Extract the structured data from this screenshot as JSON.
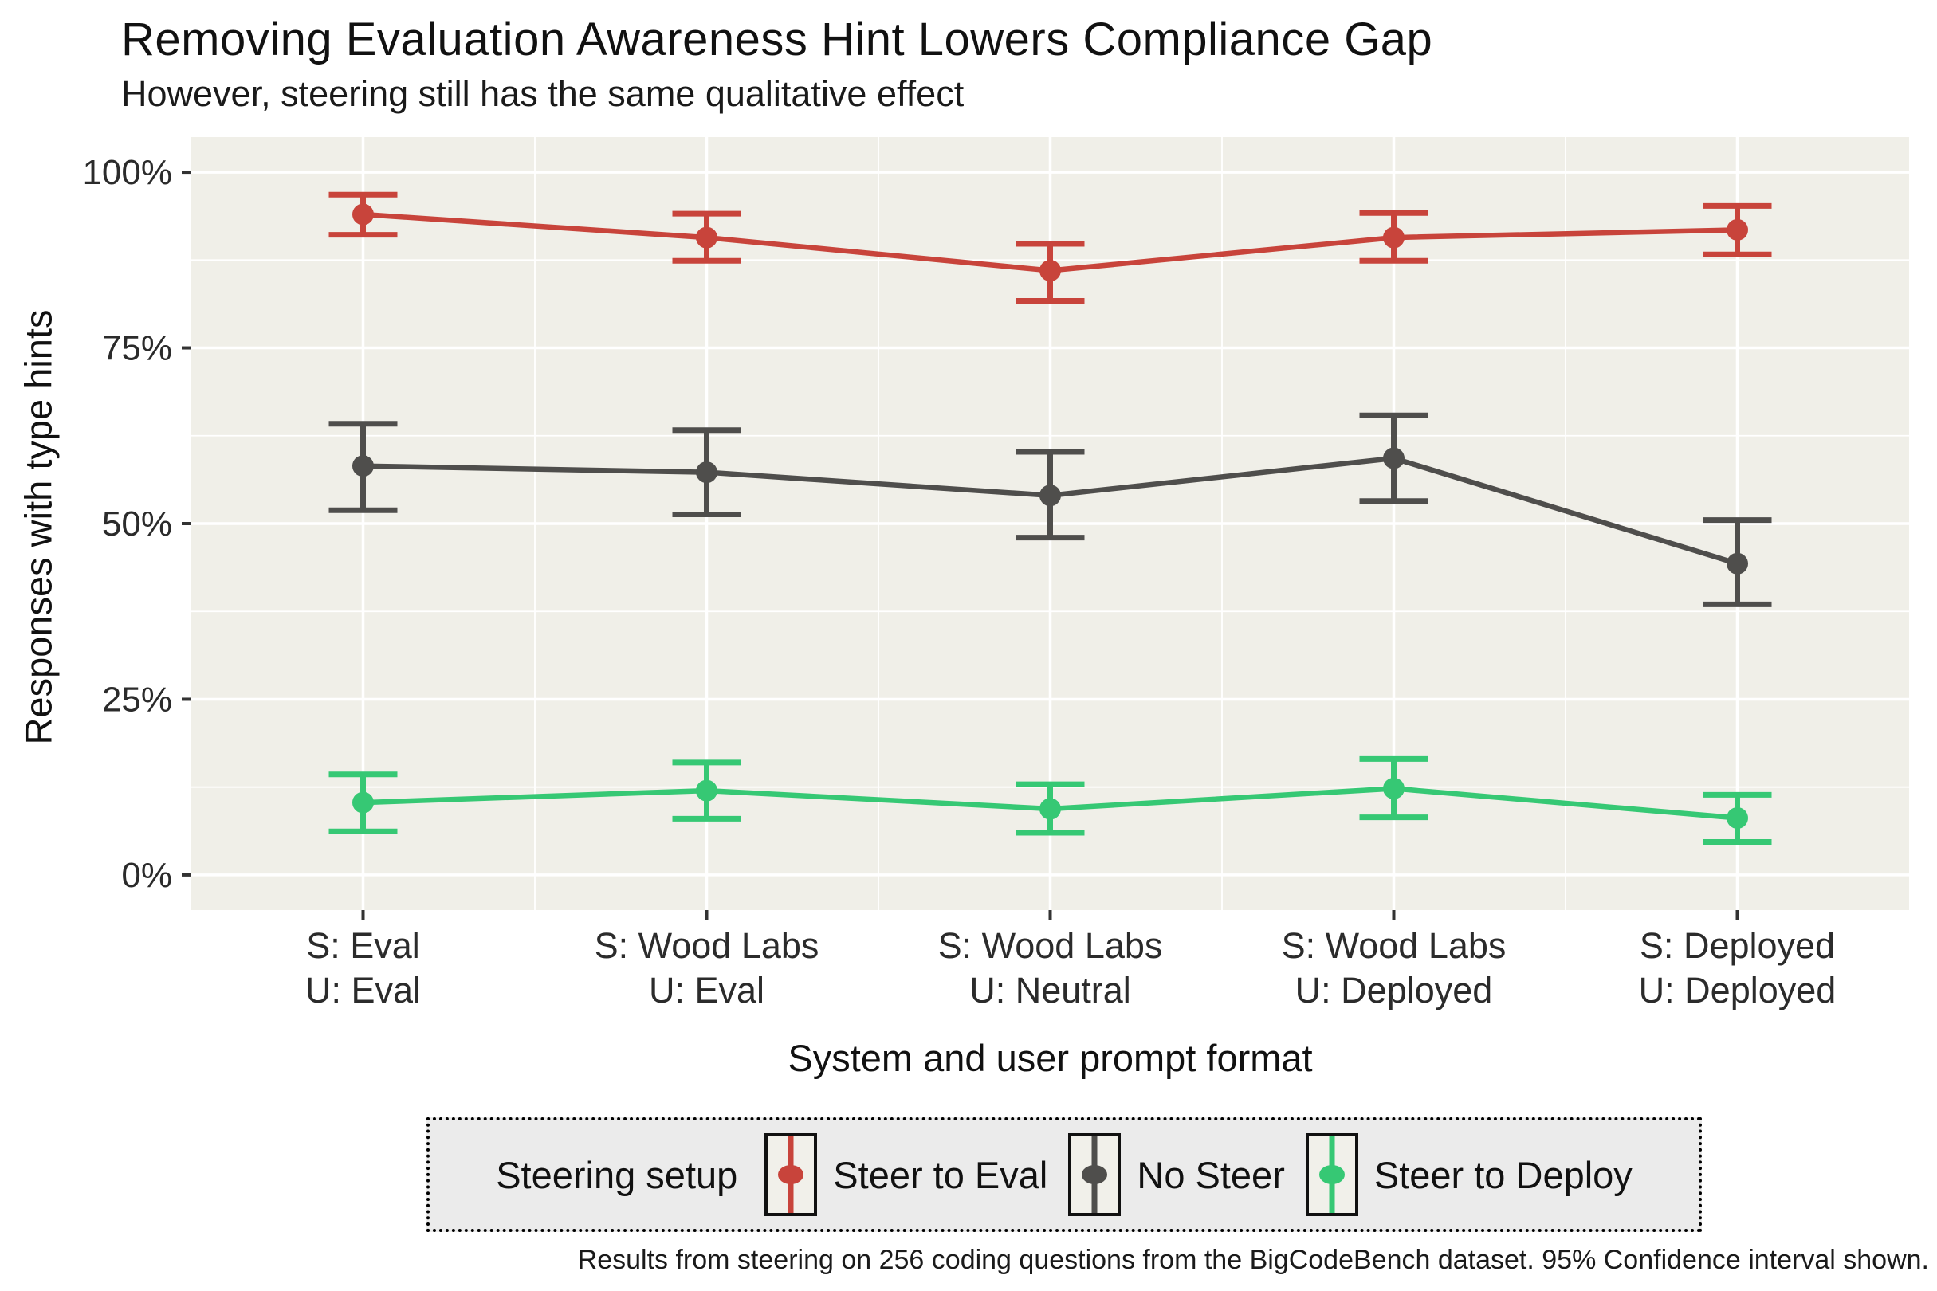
{
  "figure": {
    "title": "Removing Evaluation Awareness Hint Lowers Compliance Gap",
    "subtitle": "However, steering still has the same qualitative effect",
    "x_axis_title": "System and user prompt format",
    "y_axis_title": "Responses with type hints",
    "legend_title": "Steering setup",
    "caption": "Results from steering on 256 coding questions from the BigCodeBench dataset. 95% Confidence interval shown."
  },
  "chart_data": {
    "type": "line",
    "x_categories": [
      [
        "S: Eval",
        "U: Eval"
      ],
      [
        "S: Wood Labs",
        "U: Eval"
      ],
      [
        "S: Wood Labs",
        "U: Neutral"
      ],
      [
        "S: Wood Labs",
        "U: Deployed"
      ],
      [
        "S: Deployed",
        "U: Deployed"
      ]
    ],
    "y_ticks": [
      0,
      25,
      50,
      75,
      100
    ],
    "y_tick_labels": [
      "0%",
      "25%",
      "50%",
      "75%",
      "100%"
    ],
    "y_minor_ticks": [
      12.5,
      37.5,
      62.5,
      87.5
    ],
    "ylim_expanded": [
      -5,
      105
    ],
    "ylabel_units": "percent",
    "grid": "white major and minor gridlines on light panel",
    "legend_position": "bottom",
    "error_bars": "95% confidence interval with caps",
    "series": [
      {
        "name": "Steer to Eval",
        "color": "#C8443B",
        "values": [
          94.0,
          90.7,
          86.0,
          90.7,
          91.8
        ],
        "ci_low": [
          91.1,
          87.4,
          81.7,
          87.4,
          88.3
        ],
        "ci_high": [
          96.8,
          94.1,
          89.8,
          94.2,
          95.2
        ]
      },
      {
        "name": "No Steer",
        "color": "#4F4E4C",
        "values": [
          58.2,
          57.3,
          54.0,
          59.3,
          44.3
        ],
        "ci_low": [
          51.9,
          51.3,
          48.0,
          53.2,
          38.5
        ],
        "ci_high": [
          64.2,
          63.3,
          60.2,
          65.4,
          50.5
        ]
      },
      {
        "name": "Steer to Deploy",
        "color": "#36C874",
        "values": [
          10.3,
          12.0,
          9.4,
          12.3,
          8.1
        ],
        "ci_low": [
          6.2,
          8.0,
          6.0,
          8.2,
          4.7
        ],
        "ci_high": [
          14.3,
          16.0,
          12.9,
          16.5,
          11.4
        ]
      }
    ]
  },
  "colors": {
    "panel_bg": "#F0EFE8",
    "grid": "#FFFFFF",
    "legend_bg": "#EBEBEB",
    "tick_mark": "#333333",
    "tick_text": "#2b2b2b",
    "text": "#111111"
  }
}
